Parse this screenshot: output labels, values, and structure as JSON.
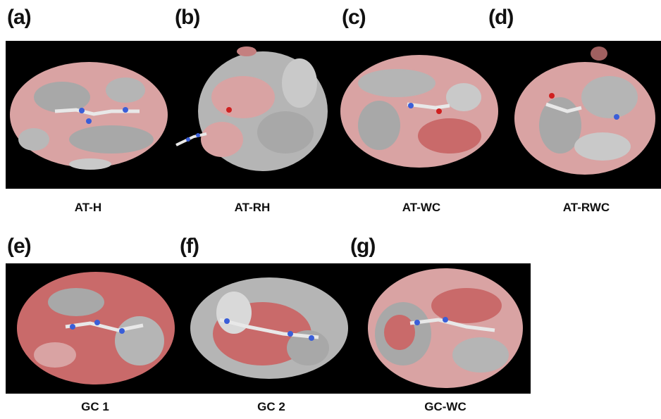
{
  "panels": [
    {
      "letter": "(a)",
      "caption": "AT-H"
    },
    {
      "letter": "(b)",
      "caption": "AT-RH"
    },
    {
      "letter": "(c)",
      "caption": "AT-WC"
    },
    {
      "letter": "(d)",
      "caption": "AT-RWC"
    },
    {
      "letter": "(e)",
      "caption": "GC 1"
    },
    {
      "letter": "(f)",
      "caption": "GC 2"
    },
    {
      "letter": "(g)",
      "caption": "GC-WC"
    }
  ],
  "colors": {
    "background": "#000000",
    "surface_pink": "#d9a3a3",
    "surface_red": "#c96a6a",
    "surface_gray": "#a8a8a8",
    "atom_nitrogen": "#3a5ed8",
    "atom_oxygen": "#d02020",
    "atom_carbon": "#e8e8e8"
  },
  "icons": [
    "molecular-surface-render"
  ]
}
